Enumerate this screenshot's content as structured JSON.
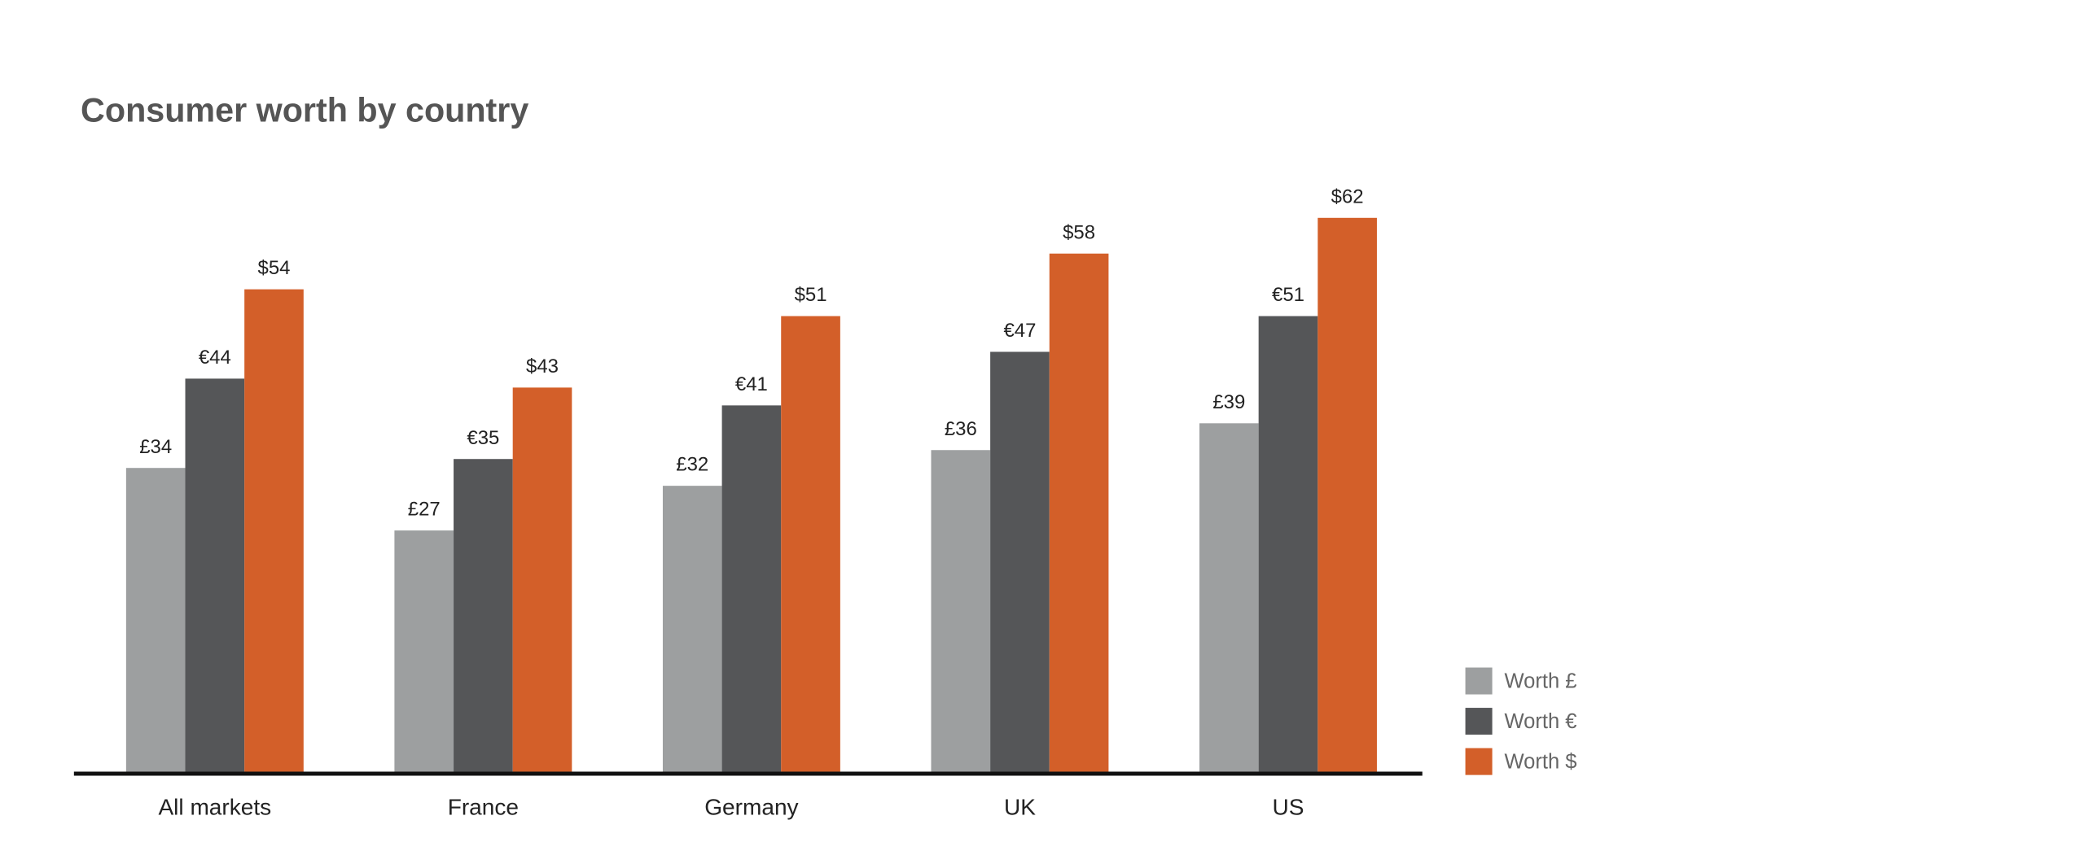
{
  "chart_data": {
    "type": "bar",
    "title": "Consumer worth by country",
    "categories": [
      "All markets",
      "France",
      "Germany",
      "UK",
      "US"
    ],
    "series": [
      {
        "name": "Worth £",
        "color": "#9d9fa0",
        "values": [
          34,
          27,
          32,
          36,
          39
        ],
        "value_labels": [
          "£34",
          "£27",
          "£32",
          "£36",
          "£39"
        ]
      },
      {
        "name": "Worth €",
        "color": "#555658",
        "values": [
          44,
          35,
          41,
          47,
          51
        ],
        "value_labels": [
          "€44",
          "€35",
          "€41",
          "€47",
          "€51"
        ]
      },
      {
        "name": "Worth $",
        "color": "#d35f29",
        "values": [
          54,
          43,
          51,
          58,
          62
        ],
        "value_labels": [
          "$54",
          "$43",
          "$51",
          "$58",
          "$62"
        ]
      }
    ],
    "legend": "lower right"
  }
}
